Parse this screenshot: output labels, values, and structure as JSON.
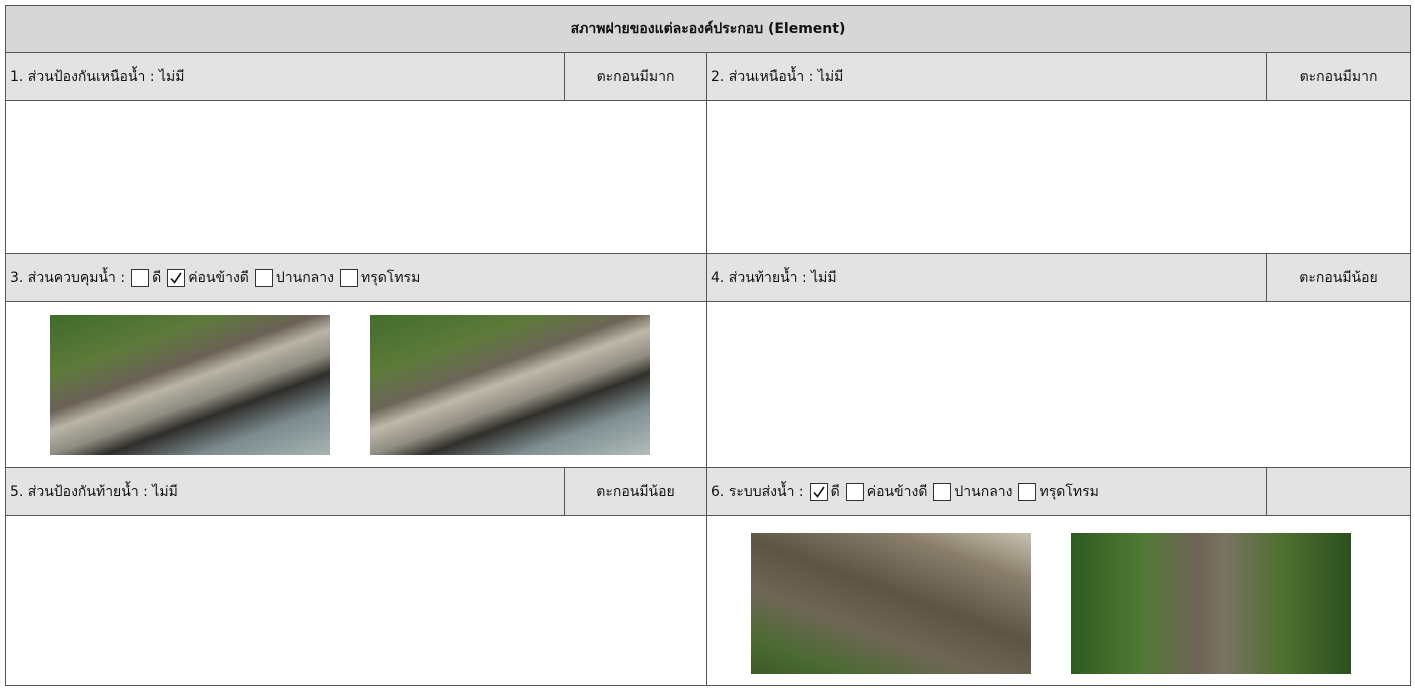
{
  "header": {
    "title": "สภาพฝายของแต่ละองค์ประกอบ (Element)"
  },
  "sections": [
    {
      "title": "1. ส่วนป้องกันเหนือน้ำ : ไม่มี",
      "note": "ตะกอนมีมาก"
    },
    {
      "title": "2. ส่วนเหนือน้ำ : ไม่มี",
      "note": "ตะกอนมีมาก"
    },
    {
      "title": "3. ส่วนควบคุมน้ำ :",
      "options": [
        {
          "label": "ดี",
          "checked": false
        },
        {
          "label": "ค่อนข้างดี",
          "checked": true
        },
        {
          "label": "ปานกลาง",
          "checked": false
        },
        {
          "label": "ทรุดโทรม",
          "checked": false
        }
      ]
    },
    {
      "title": "4. ส่วนท้ายน้ำ : ไม่มี",
      "note": "ตะกอนมีน้อย"
    },
    {
      "title": "5. ส่วนป้องกันท้ายน้ำ : ไม่มี",
      "note": "ตะกอนมีน้อย"
    },
    {
      "title": "6. ระบบส่งน้ำ :",
      "options": [
        {
          "label": "ดี",
          "checked": true
        },
        {
          "label": "ค่อนข้างดี",
          "checked": false
        },
        {
          "label": "ปานกลาง",
          "checked": false
        },
        {
          "label": "ทรุดโทรม",
          "checked": false
        }
      ]
    }
  ]
}
